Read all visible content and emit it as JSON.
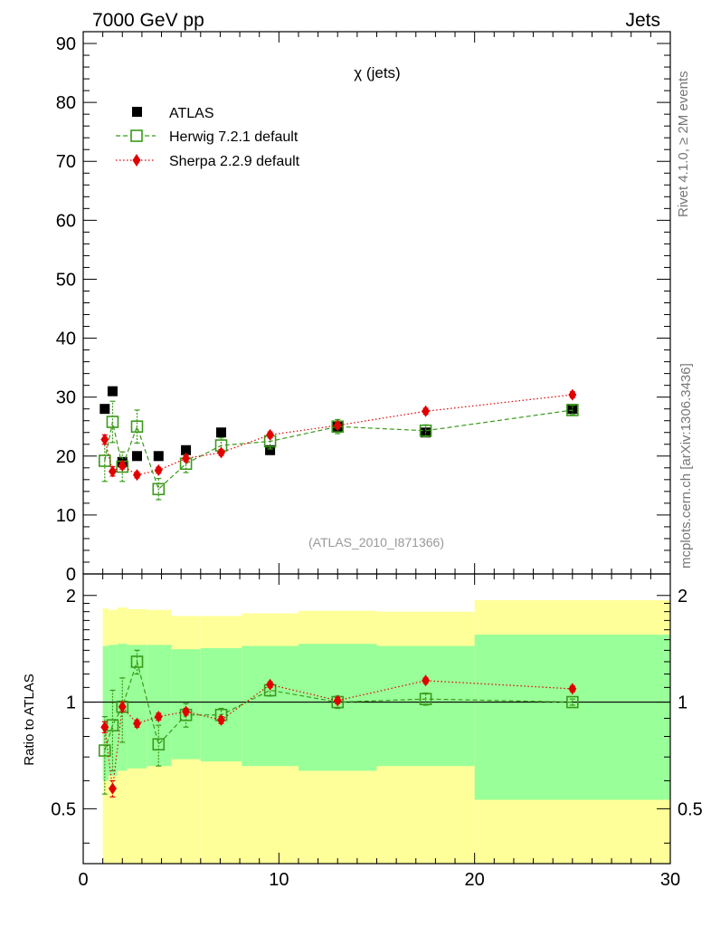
{
  "header": {
    "left": "7000 GeV pp",
    "right": "Jets"
  },
  "side_labels": {
    "rivet": "Rivet 4.1.0, ≥ 2M events",
    "mcplots": "mcplots.cern.ch [arXiv:1306.3436]"
  },
  "colors": {
    "atlas": "#000000",
    "herwig": "#3a9a1a",
    "sherpa": "#e00000",
    "band_outer": "#ffff99",
    "band_inner": "#99ff99"
  },
  "chart_data": [
    {
      "type": "scatter",
      "panel": "main",
      "title": "χ (jets)",
      "watermark": "(ATLAS_2010_I871366)",
      "xlim": [
        0,
        30
      ],
      "ylim": [
        0,
        92
      ],
      "yticks": [
        "0",
        "10",
        "20",
        "30",
        "40",
        "50",
        "60",
        "70",
        "80",
        "90"
      ],
      "legend_position": "top-left",
      "series": [
        {
          "name": "ATLAS",
          "marker": "filled-square",
          "x": [
            1.1,
            1.5,
            2.0,
            2.75,
            3.85,
            5.25,
            7.05,
            9.55,
            13.0,
            17.5,
            25.0
          ],
          "y": [
            28.0,
            31.0,
            19.0,
            20.0,
            20.0,
            21.0,
            24.0,
            21.0,
            25.0,
            24.0,
            28.0
          ]
        },
        {
          "name": "Herwig 7.2.1 default",
          "marker": "open-square",
          "line": "dashed",
          "x": [
            1.1,
            1.5,
            2.0,
            2.75,
            3.85,
            5.25,
            7.05,
            9.55,
            13.0,
            17.5,
            25.0
          ],
          "y": [
            19.2,
            25.8,
            18.2,
            25.0,
            14.4,
            18.7,
            21.8,
            22.5,
            25.0,
            24.3,
            27.8
          ],
          "err": [
            3.5,
            3.5,
            2.5,
            2.8,
            1.8,
            1.5,
            1.3,
            1.3,
            1.2,
            1.0,
            0.8
          ]
        },
        {
          "name": "Sherpa 2.2.9 default",
          "marker": "diamond",
          "line": "dotted",
          "x": [
            1.1,
            1.5,
            2.0,
            2.75,
            3.85,
            5.25,
            7.05,
            9.55,
            13.0,
            17.5,
            25.0
          ],
          "y": [
            22.8,
            17.4,
            18.4,
            16.8,
            17.6,
            19.6,
            20.6,
            23.6,
            25.2,
            27.6,
            30.4
          ],
          "err": [
            0.8,
            0.8,
            0.6,
            0.5,
            0.5,
            0.5,
            0.5,
            0.5,
            0.5,
            0.5,
            0.5
          ]
        }
      ]
    },
    {
      "type": "scatter",
      "panel": "ratio",
      "ylabel": "Ratio to ATLAS",
      "xlim": [
        0,
        30
      ],
      "ylim": [
        0.35,
        2.3
      ],
      "scale": "log",
      "yticks": [
        "0.5",
        "1",
        "2"
      ],
      "xticks": [
        "0",
        "10",
        "20",
        "30"
      ],
      "reference_line": 1,
      "bands": {
        "edges": [
          1,
          1.3,
          1.75,
          2.25,
          3.25,
          4.5,
          6.0,
          8.1,
          11.0,
          15.0,
          20.0,
          30.0
        ],
        "outer_low": [
          0.33,
          0.33,
          0.33,
          0.33,
          0.33,
          0.33,
          0.33,
          0.33,
          0.33,
          0.33,
          0.33
        ],
        "outer_high": [
          1.84,
          1.82,
          1.85,
          1.83,
          1.82,
          1.75,
          1.75,
          1.78,
          1.81,
          1.8,
          1.94
        ],
        "inner_low": [
          0.6,
          0.62,
          0.64,
          0.65,
          0.66,
          0.69,
          0.68,
          0.66,
          0.64,
          0.66,
          0.53
        ],
        "inner_high": [
          1.44,
          1.45,
          1.46,
          1.45,
          1.45,
          1.41,
          1.42,
          1.44,
          1.46,
          1.44,
          1.55
        ]
      },
      "series": [
        {
          "name": "Herwig 7.2.1 default",
          "marker": "open-square",
          "line": "dashed",
          "x": [
            1.1,
            1.5,
            2.0,
            2.75,
            3.85,
            5.25,
            7.05,
            9.55,
            13.0,
            17.5,
            25.0
          ],
          "y": [
            0.73,
            0.86,
            0.97,
            1.3,
            0.76,
            0.92,
            0.92,
            1.08,
            1.0,
            1.02,
            1.0
          ],
          "err": [
            0.18,
            0.22,
            0.2,
            0.1,
            0.1,
            0.07,
            0.04,
            0.04,
            0.04,
            0.04,
            0.02
          ]
        },
        {
          "name": "Sherpa 2.2.9 default",
          "marker": "diamond",
          "line": "dotted",
          "x": [
            1.1,
            1.5,
            2.0,
            2.75,
            3.85,
            5.25,
            7.05,
            9.55,
            13.0,
            17.5,
            25.0
          ],
          "y": [
            0.85,
            0.57,
            0.97,
            0.87,
            0.91,
            0.94,
            0.89,
            1.12,
            1.01,
            1.15,
            1.09
          ],
          "err": [
            0.03,
            0.03,
            0.03,
            0.02,
            0.02,
            0.02,
            0.02,
            0.02,
            0.02,
            0.02,
            0.02
          ]
        }
      ]
    }
  ]
}
